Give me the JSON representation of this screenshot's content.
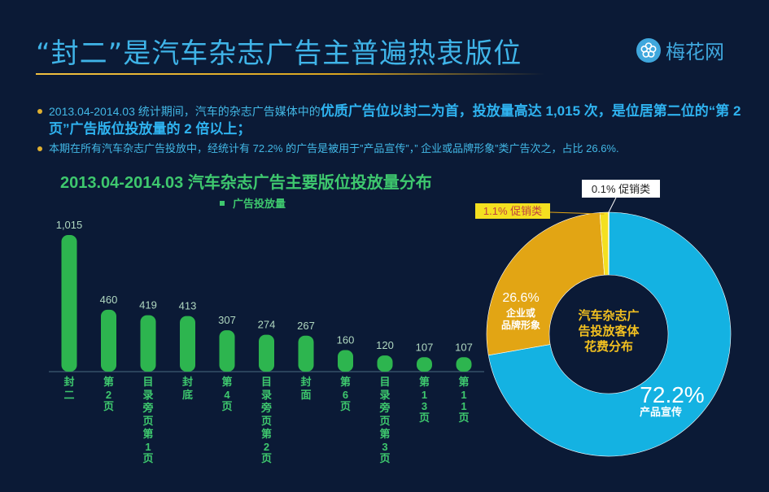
{
  "header": {
    "title": "“封二”是汽车杂志广告主普遍热衷版位",
    "logo_text": "梅花网"
  },
  "bullets": [
    {
      "normal": "2013.04-2014.03 统计期间，汽车的杂志广告媒体中的",
      "highlight": "优质广告位以封二为首，投放量高达 1,015 次，是位居第二位的“第 2 页”广告版位投放量的 2 倍以上；"
    },
    {
      "normal": "本期在所有汽车杂志广告投放中，经统计有 72.2% 的广告是被用于”产品宣传”，” 企业或品牌形象”类广告次之，占比 26.6%."
    }
  ],
  "colors": {
    "background": "#0b1a36",
    "title": "#3fb4e8",
    "bar": "#2db54f",
    "bar_label": "#3ec86e",
    "value_label": "#b0d8c0",
    "donut_blue": "#14b2e2",
    "donut_gold": "#e2a514",
    "donut_yellow": "#f4e020",
    "donut_center": "#0b1a36"
  },
  "chart_data": [
    {
      "type": "bar",
      "title": "2013.04-2014.03 汽车杂志广告主要版位投放量分布",
      "series": [
        {
          "name": "广告投放量",
          "values": [
            1015,
            460,
            419,
            413,
            307,
            274,
            267,
            160,
            120,
            107,
            107
          ]
        }
      ],
      "categories": [
        "封二",
        "第2页",
        "目录旁页第1页",
        "封底",
        "第4页",
        "目录旁页第2页",
        "封面",
        "第6页",
        "目录旁页第3页",
        "第13页",
        "第11页"
      ],
      "value_labels": [
        "1,015",
        "460",
        "419",
        "413",
        "307",
        "274",
        "267",
        "160",
        "120",
        "107",
        "107"
      ],
      "ylim": [
        0,
        1015
      ]
    },
    {
      "type": "pie",
      "title": "汽车杂志广告投放客体花费分布",
      "slices": [
        {
          "label": "产品宣传",
          "value": 72.2,
          "text": "72.2%"
        },
        {
          "label": "企业或品牌形象",
          "value": 26.6,
          "text": "26.6%"
        },
        {
          "label": "促销类",
          "value": 1.1,
          "text": "1.1% 促销类"
        },
        {
          "label": "促销类",
          "value": 0.1,
          "text": "0.1% 促销类"
        }
      ]
    }
  ]
}
